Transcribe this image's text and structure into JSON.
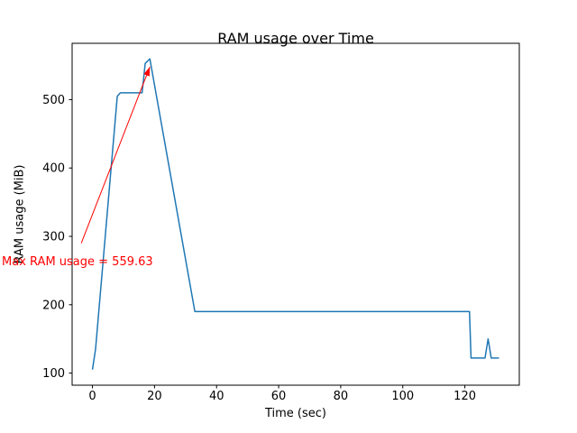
{
  "chart_data": {
    "type": "line",
    "title": "RAM usage over Time",
    "xlabel": "Time (sec)",
    "ylabel": "RAM usage (MiB)",
    "line_color": "#1f77b4",
    "axis_color": "#000000",
    "background_color": "#ffffff",
    "grid": false,
    "legend": "none",
    "xlim": [
      -6.55,
      137.55
    ],
    "ylim": [
      82.3,
      582.4
    ],
    "xticks": [
      0,
      20,
      40,
      60,
      80,
      100,
      120
    ],
    "yticks": [
      100,
      200,
      300,
      400,
      500
    ],
    "x": [
      0,
      1,
      8,
      9,
      16,
      17,
      18.5,
      33,
      121.5,
      122,
      126.5,
      127.5,
      128.5,
      131
    ],
    "y": [
      105,
      135,
      505,
      510,
      510,
      553,
      559.63,
      190,
      190,
      122,
      122,
      150,
      122,
      122
    ],
    "max_value": 559.63,
    "annotation": {
      "text": "Max RAM usage = 559.63",
      "color": "#ff0000",
      "text_xy": [
        -29.2,
        262
      ],
      "arrow_from": [
        -3.6,
        290
      ],
      "arrow_to": [
        18.5,
        548
      ]
    }
  }
}
